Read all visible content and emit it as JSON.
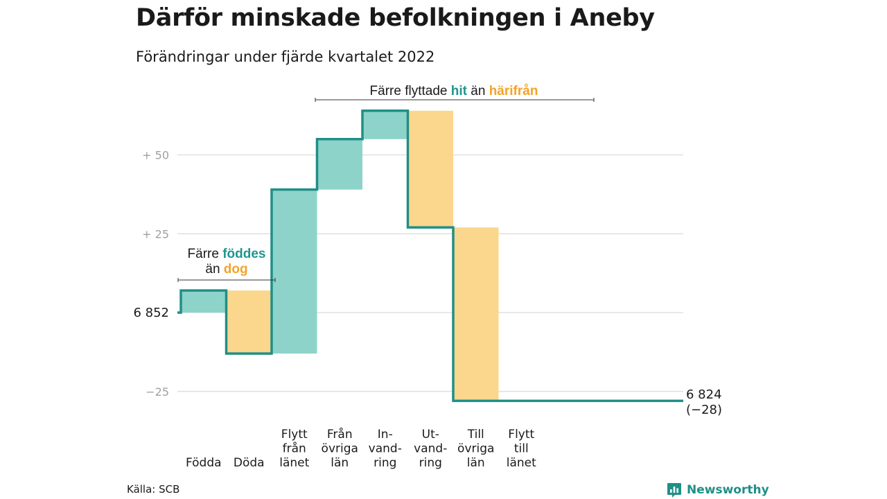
{
  "header": {
    "title": "Därför minskade befolkningen i Aneby",
    "subtitle": "Förändringar under fjärde kvartalet 2022"
  },
  "footer": {
    "source": "Källa: SCB",
    "brand": "Newsworthy",
    "brand_icon": "bar-chart-icon"
  },
  "colors": {
    "increase": "#8dd3ca",
    "decrease": "#fbd68d",
    "line": "#1f8f87",
    "accent_hit": "#1f968c",
    "accent_dog": "#f3a32a",
    "grid": "#e0e0e0",
    "tick": "#a0a0a0"
  },
  "chart_data": {
    "type": "waterfall",
    "start_value": 6852,
    "start_label": "6 852",
    "end_value": 6824,
    "end_label": "6 824",
    "end_change_label": "(−28)",
    "y_ticks": [
      {
        "value": 50,
        "label": "+ 50"
      },
      {
        "value": 25,
        "label": "+ 25"
      },
      {
        "value": 0,
        "label": "6 852"
      },
      {
        "value": -25,
        "label": "−25"
      }
    ],
    "ylim": [
      -30,
      64
    ],
    "grid": true,
    "steps": [
      {
        "label_lines": [
          "Födda"
        ],
        "value": 7,
        "kind": "increase"
      },
      {
        "label_lines": [
          "Döda"
        ],
        "value": -20,
        "kind": "decrease"
      },
      {
        "label_lines": [
          "Flytt",
          "från",
          "länet"
        ],
        "value": 52,
        "kind": "increase"
      },
      {
        "label_lines": [
          "Från",
          "övriga",
          "län"
        ],
        "value": 16,
        "kind": "increase"
      },
      {
        "label_lines": [
          "In-",
          "vand-",
          "ring"
        ],
        "value": 9,
        "kind": "increase"
      },
      {
        "label_lines": [
          "Ut-",
          "vand-",
          "ring"
        ],
        "value": -37,
        "kind": "decrease"
      },
      {
        "label_lines": [
          "Till",
          "övriga",
          "län"
        ],
        "value": -55,
        "kind": "decrease"
      },
      {
        "label_lines": [
          "Flytt",
          "till",
          "länet"
        ],
        "value": 0,
        "kind": "increase"
      }
    ],
    "annotations": [
      {
        "line1": [
          {
            "text": "Färre ",
            "style": "plain"
          },
          {
            "text": "föddes",
            "style": "hit"
          }
        ],
        "line2": [
          {
            "text": "än ",
            "style": "plain"
          },
          {
            "text": "dog",
            "style": "dog"
          }
        ],
        "span_steps": [
          0,
          1
        ]
      },
      {
        "line1": [
          {
            "text": "Färre flyttade ",
            "style": "plain"
          },
          {
            "text": "hit",
            "style": "hit"
          },
          {
            "text": " än ",
            "style": "plain"
          },
          {
            "text": "härifrån",
            "style": "dog"
          }
        ],
        "span_steps": [
          2,
          7
        ]
      }
    ]
  }
}
